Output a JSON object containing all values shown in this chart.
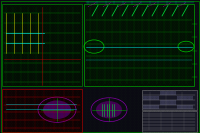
{
  "bg_color": "#0a0a12",
  "border_color": "#1a3a1a",
  "dot_color": "#1a2a1a",
  "cyan_details": "#00ffff",
  "yellow_details": "#ffff00",
  "red_details": "#ff0000",
  "magenta_details": "#ff00ff"
}
